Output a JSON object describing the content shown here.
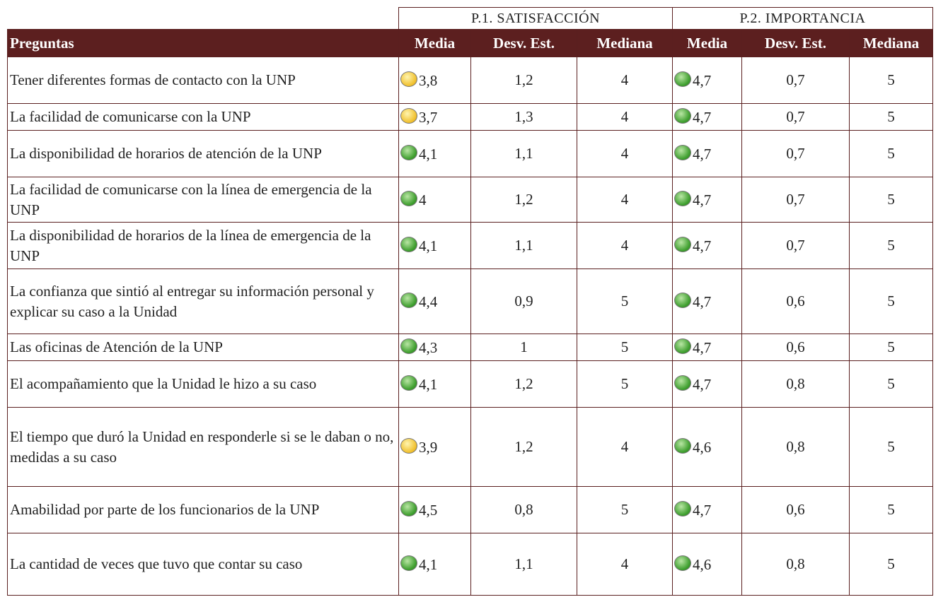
{
  "table": {
    "groups": [
      "P.1. SATISFACCIÓN",
      "P.2. IMPORTANCIA"
    ],
    "columns": [
      "Preguntas",
      "Media",
      "Desv. Est.",
      "Mediana",
      "Media",
      "Desv. Est.",
      "Mediana"
    ],
    "rows": [
      {
        "cells": [
          "Tener diferentes formas de contacto con la UNP",
          "3,8",
          "1,2",
          "4",
          "4,7",
          "0,7",
          "5"
        ],
        "indicators": [
          "yellow",
          "green"
        ]
      },
      {
        "cells": [
          "La facilidad de comunicarse con la UNP",
          "3,7",
          "1,3",
          "4",
          "4,7",
          "0,7",
          "5"
        ],
        "indicators": [
          "yellow",
          "green"
        ]
      },
      {
        "cells": [
          "La disponibilidad de horarios de atención de la UNP",
          "4,1",
          "1,1",
          "4",
          "4,7",
          "0,7",
          "5"
        ],
        "indicators": [
          "green",
          "green"
        ]
      },
      {
        "cells": [
          "La facilidad de comunicarse con la línea de emergencia de la UNP",
          "4",
          "1,2",
          "4",
          "4,7",
          "0,7",
          "5"
        ],
        "indicators": [
          "green",
          "green"
        ]
      },
      {
        "cells": [
          "La disponibilidad de horarios de la línea de emergencia de la UNP",
          "4,1",
          "1,1",
          "4",
          "4,7",
          "0,7",
          "5"
        ],
        "indicators": [
          "green",
          "green"
        ]
      },
      {
        "cells": [
          "La confianza que sintió al entregar su información personal y explicar su caso a la Unidad",
          "4,4",
          "0,9",
          "5",
          "4,7",
          "0,6",
          "5"
        ],
        "indicators": [
          "green",
          "green"
        ]
      },
      {
        "cells": [
          "Las oficinas de Atención de la UNP",
          "4,3",
          "1",
          "5",
          "4,7",
          "0,6",
          "5"
        ],
        "indicators": [
          "green",
          "green"
        ]
      },
      {
        "cells": [
          "El acompañamiento que la Unidad le hizo a su caso",
          "4,1",
          "1,2",
          "5",
          "4,7",
          "0,8",
          "5"
        ],
        "indicators": [
          "green",
          "green"
        ]
      },
      {
        "cells": [
          "El tiempo que duró la Unidad en responderle si se le daban o no, medidas a su caso",
          "3,9",
          "1,2",
          "4",
          "4,6",
          "0,8",
          "5"
        ],
        "indicators": [
          "yellow",
          "green"
        ]
      },
      {
        "cells": [
          "Amabilidad por parte de los funcionarios de la UNP",
          "4,5",
          "0,8",
          "5",
          "4,7",
          "0,6",
          "5"
        ],
        "indicators": [
          "green",
          "green"
        ]
      },
      {
        "cells": [
          "La cantidad de veces que tuvo que contar su caso",
          "4,1",
          "1,1",
          "4",
          "4,6",
          "0,8",
          "5"
        ],
        "indicators": [
          "green",
          "green"
        ]
      }
    ]
  }
}
